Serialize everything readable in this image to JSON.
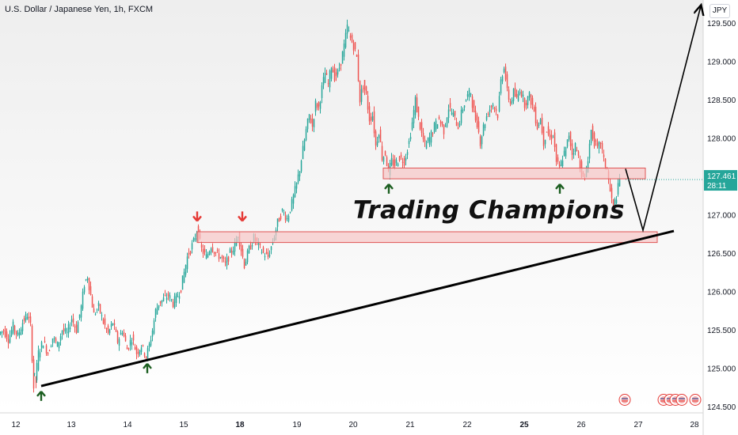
{
  "header": {
    "title": "U.S. Dollar / Japanese Yen, 1h, FXCM",
    "currency_label": "JPY"
  },
  "annotation": {
    "watermark": "Trading Champions"
  },
  "price_label": {
    "price": "127.461",
    "countdown": "28:11",
    "color": "#26a69a"
  },
  "colors": {
    "up": "#26a69a",
    "down": "#ef5350",
    "zone_fill": "#f7c6c6",
    "zone_stroke": "#e05555",
    "trendline": "#000000",
    "arrow_up": "#1b5e20",
    "arrow_down": "#e53935",
    "event_icon": "flag-icon"
  },
  "chart_data": {
    "type": "candlestick",
    "symbol": "USDJPY",
    "interval": "1h",
    "ylim": [
      124.42,
      129.8
    ],
    "y_ticks": [
      "129.500",
      "129.000",
      "128.500",
      "128.000",
      "127.500",
      "127.000",
      "126.500",
      "126.000",
      "125.500",
      "125.000",
      "124.500"
    ],
    "y_tick_values": [
      129.5,
      129.0,
      128.5,
      128.0,
      127.5,
      127.0,
      126.5,
      126.0,
      125.5,
      125.0,
      124.5
    ],
    "x_ticks": [
      "12",
      "13",
      "14",
      "15",
      "18",
      "19",
      "20",
      "21",
      "22",
      "25",
      "26",
      "27",
      "28"
    ],
    "x_tick_bold": [
      false,
      false,
      false,
      false,
      true,
      false,
      false,
      false,
      false,
      true,
      false,
      false,
      false
    ],
    "close_path": [
      [
        0,
        125.45
      ],
      [
        6,
        125.5
      ],
      [
        12,
        125.38
      ],
      [
        18,
        125.55
      ],
      [
        24,
        125.42
      ],
      [
        30,
        125.6
      ],
      [
        36,
        125.7
      ],
      [
        40,
        125.55
      ],
      [
        43,
        124.95
      ],
      [
        46,
        124.85
      ],
      [
        50,
        125.2
      ],
      [
        56,
        125.35
      ],
      [
        62,
        125.2
      ],
      [
        68,
        125.4
      ],
      [
        74,
        125.3
      ],
      [
        80,
        125.5
      ],
      [
        86,
        125.45
      ],
      [
        92,
        125.65
      ],
      [
        98,
        125.5
      ],
      [
        104,
        125.8
      ],
      [
        108,
        126.1
      ],
      [
        112,
        126.2
      ],
      [
        116,
        125.95
      ],
      [
        120,
        125.7
      ],
      [
        126,
        125.8
      ],
      [
        132,
        125.6
      ],
      [
        138,
        125.45
      ],
      [
        144,
        125.6
      ],
      [
        150,
        125.35
      ],
      [
        156,
        125.5
      ],
      [
        162,
        125.25
      ],
      [
        168,
        125.4
      ],
      [
        174,
        125.2
      ],
      [
        180,
        125.3
      ],
      [
        186,
        125.15
      ],
      [
        190,
        125.3
      ],
      [
        194,
        125.5
      ],
      [
        198,
        125.75
      ],
      [
        202,
        125.85
      ],
      [
        208,
        125.9
      ],
      [
        214,
        125.95
      ],
      [
        220,
        125.85
      ],
      [
        226,
        125.95
      ],
      [
        230,
        126.05
      ],
      [
        234,
        126.25
      ],
      [
        238,
        126.45
      ],
      [
        242,
        126.55
      ],
      [
        246,
        126.65
      ],
      [
        250,
        126.8
      ],
      [
        256,
        126.55
      ],
      [
        262,
        126.45
      ],
      [
        268,
        126.6
      ],
      [
        274,
        126.5
      ],
      [
        280,
        126.45
      ],
      [
        286,
        126.35
      ],
      [
        292,
        126.5
      ],
      [
        298,
        126.6
      ],
      [
        302,
        126.75
      ],
      [
        306,
        126.55
      ],
      [
        310,
        126.35
      ],
      [
        316,
        126.55
      ],
      [
        322,
        126.7
      ],
      [
        328,
        126.6
      ],
      [
        334,
        126.5
      ],
      [
        340,
        126.45
      ],
      [
        346,
        126.65
      ],
      [
        352,
        126.9
      ],
      [
        358,
        127.05
      ],
      [
        364,
        126.95
      ],
      [
        370,
        127.15
      ],
      [
        376,
        127.4
      ],
      [
        380,
        127.6
      ],
      [
        384,
        127.85
      ],
      [
        388,
        128.1
      ],
      [
        392,
        128.3
      ],
      [
        396,
        128.15
      ],
      [
        400,
        128.45
      ],
      [
        404,
        128.4
      ],
      [
        408,
        128.65
      ],
      [
        412,
        128.85
      ],
      [
        416,
        128.7
      ],
      [
        420,
        128.95
      ],
      [
        424,
        128.8
      ],
      [
        428,
        128.85
      ],
      [
        432,
        129.0
      ],
      [
        436,
        129.2
      ],
      [
        440,
        129.45
      ],
      [
        444,
        129.3
      ],
      [
        448,
        129.2
      ],
      [
        452,
        129.05
      ],
      [
        456,
        128.5
      ],
      [
        460,
        128.7
      ],
      [
        464,
        128.55
      ],
      [
        468,
        128.25
      ],
      [
        472,
        128.3
      ],
      [
        476,
        127.9
      ],
      [
        480,
        128.1
      ],
      [
        484,
        127.75
      ],
      [
        488,
        127.8
      ],
      [
        492,
        127.55
      ],
      [
        496,
        127.7
      ],
      [
        500,
        127.65
      ],
      [
        506,
        127.75
      ],
      [
        512,
        127.7
      ],
      [
        518,
        127.95
      ],
      [
        522,
        128.2
      ],
      [
        526,
        128.5
      ],
      [
        530,
        128.25
      ],
      [
        534,
        128.05
      ],
      [
        538,
        127.9
      ],
      [
        544,
        128.0
      ],
      [
        550,
        128.15
      ],
      [
        556,
        128.25
      ],
      [
        562,
        128.1
      ],
      [
        568,
        128.4
      ],
      [
        574,
        128.3
      ],
      [
        580,
        128.15
      ],
      [
        586,
        128.4
      ],
      [
        592,
        128.55
      ],
      [
        596,
        128.6
      ],
      [
        600,
        128.3
      ],
      [
        604,
        128.2
      ],
      [
        608,
        127.95
      ],
      [
        612,
        128.15
      ],
      [
        618,
        128.35
      ],
      [
        624,
        128.45
      ],
      [
        630,
        128.3
      ],
      [
        634,
        128.75
      ],
      [
        638,
        128.95
      ],
      [
        642,
        128.6
      ],
      [
        646,
        128.45
      ],
      [
        650,
        128.6
      ],
      [
        654,
        128.5
      ],
      [
        658,
        128.65
      ],
      [
        664,
        128.45
      ],
      [
        670,
        128.55
      ],
      [
        676,
        128.35
      ],
      [
        680,
        128.15
      ],
      [
        684,
        128.25
      ],
      [
        688,
        127.95
      ],
      [
        692,
        128.1
      ],
      [
        696,
        128.0
      ],
      [
        700,
        128.05
      ],
      [
        704,
        127.7
      ],
      [
        708,
        127.6
      ],
      [
        712,
        127.75
      ],
      [
        716,
        127.85
      ],
      [
        720,
        128.05
      ],
      [
        724,
        127.8
      ],
      [
        728,
        127.9
      ],
      [
        732,
        127.75
      ],
      [
        736,
        127.55
      ],
      [
        740,
        127.45
      ],
      [
        744,
        127.75
      ],
      [
        748,
        128.1
      ],
      [
        752,
        127.95
      ],
      [
        756,
        127.85
      ],
      [
        760,
        127.95
      ],
      [
        764,
        127.7
      ],
      [
        768,
        127.6
      ],
      [
        772,
        127.3
      ],
      [
        776,
        127.1
      ],
      [
        780,
        127.25
      ],
      [
        784,
        127.46
      ]
    ],
    "horizontal_zones": [
      {
        "x_from": 249,
        "x_to": 830,
        "low": 126.64,
        "high": 126.78
      },
      {
        "x_from": 484,
        "x_to": 815,
        "low": 127.47,
        "high": 127.61
      }
    ],
    "trendline": {
      "from": [
        52,
        124.77
      ],
      "to": [
        851,
        126.79
      ]
    },
    "projection_path": [
      [
        790,
        127.6
      ],
      [
        812,
        126.8
      ],
      [
        885,
        129.72
      ]
    ],
    "up_arrows": [
      [
        52,
        124.7
      ],
      [
        186,
        125.06
      ],
      [
        491,
        127.4
      ],
      [
        707,
        127.4
      ]
    ],
    "down_arrows": [
      [
        249,
        126.92
      ],
      [
        306,
        126.92
      ]
    ],
    "event_icons": [
      [
        789,
        124.59
      ],
      [
        838,
        124.59
      ],
      [
        846,
        124.59
      ],
      [
        853,
        124.59
      ],
      [
        861,
        124.59
      ],
      [
        878,
        124.59
      ]
    ],
    "x_tick_positions": [
      20,
      90,
      161,
      232,
      303,
      375,
      446,
      518,
      590,
      662,
      734,
      806,
      877
    ]
  }
}
